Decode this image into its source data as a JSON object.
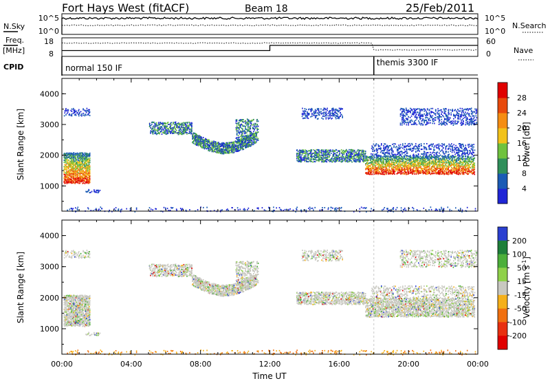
{
  "header": {
    "title": "Fort Hays West (fitACF)",
    "beam": "Beam 18",
    "date": "25/Feb/2011"
  },
  "top_panels": {
    "nsky_label": "N.Sky",
    "nsky_ticks": [
      "10^5",
      "10^0"
    ],
    "nsearch_label": "N.Search",
    "nsearch_ticks": [
      "10^5",
      "10^0"
    ],
    "freq_label": "Freq.",
    "freq_unit": "[MHz]",
    "freq_ticks": [
      "18",
      "8"
    ],
    "nave_label": "Nave",
    "nave_ticks": [
      "60",
      "0"
    ],
    "cpid_label": "CPID",
    "cpid_segments": [
      {
        "label": "normal 150 IF",
        "start_hour": 0,
        "end_hour": 18
      },
      {
        "label": "themis 3300 IF",
        "start_hour": 18,
        "end_hour": 24
      }
    ],
    "freq_series": [
      {
        "hour_start": 0,
        "hour_end": 12,
        "mhz": 10.6
      },
      {
        "hour_start": 12,
        "hour_end": 24,
        "mhz": 14.2
      }
    ]
  },
  "chart_data": [
    {
      "type": "heatmap",
      "panel": "power",
      "ylabel": "Slant Range [km]",
      "xlabel": "",
      "x_ticks": [
        "00:00",
        "04:00",
        "08:00",
        "12:00",
        "16:00",
        "20:00",
        "00:00"
      ],
      "y_ticks": [
        "1000",
        "2000",
        "3000",
        "4000"
      ],
      "xlim_hours": [
        0,
        24
      ],
      "ylim_km": [
        180,
        4500
      ],
      "colorbar_label": "Power [dB]",
      "colorbar_ticks": [
        "4",
        "8",
        "12",
        "16",
        "20",
        "24",
        "28"
      ],
      "colorbar_colors": [
        "#1f25d6",
        "#1a5bb5",
        "#2f8f5a",
        "#6fc23e",
        "#f2c21a",
        "#f58d12",
        "#e84a0c",
        "#e00000"
      ],
      "marker_hour": 18
    },
    {
      "type": "heatmap",
      "panel": "velocity",
      "ylabel": "Slant Range [km]",
      "xlabel": "Time UT",
      "x_ticks": [
        "00:00",
        "04:00",
        "08:00",
        "12:00",
        "16:00",
        "20:00",
        "00:00"
      ],
      "y_ticks": [
        "1000",
        "2000",
        "3000",
        "4000"
      ],
      "xlim_hours": [
        0,
        24
      ],
      "ylim_km": [
        180,
        4500
      ],
      "colorbar_label": "Velocity [m s^-1]",
      "colorbar_ticks": [
        "200",
        "100",
        "50",
        "15",
        "-15",
        "-50",
        "-100",
        "-200"
      ],
      "colorbar_colors": [
        "#2a3fd0",
        "#1e7f3a",
        "#4caf3a",
        "#8fd14a",
        "#c8c8c0",
        "#f5b01a",
        "#f07010",
        "#e83010",
        "#e00000"
      ],
      "marker_hour": 18
    }
  ],
  "regions": [
    {
      "h0": 0.1,
      "h1": 1.6,
      "r0": 1100,
      "r1": 2100,
      "style": "strong",
      "density": 0.8
    },
    {
      "h0": 0.1,
      "h1": 1.6,
      "r0": 3300,
      "r1": 3550,
      "style": "weak",
      "density": 0.25
    },
    {
      "h0": 1.3,
      "h1": 2.2,
      "r0": 800,
      "r1": 900,
      "style": "weak",
      "density": 0.4
    },
    {
      "h0": 5.0,
      "h1": 7.5,
      "r0": 2700,
      "r1": 3100,
      "style": "mid",
      "density": 0.45
    },
    {
      "h0": 7.5,
      "h1": 11.2,
      "r0": 2200,
      "r1": 2800,
      "style": "arc",
      "density": 0.55
    },
    {
      "h0": 10.0,
      "h1": 11.3,
      "r0": 2500,
      "r1": 3200,
      "style": "mid",
      "density": 0.35
    },
    {
      "h0": 13.5,
      "h1": 17.5,
      "r0": 1800,
      "r1": 2200,
      "style": "mid",
      "density": 0.55
    },
    {
      "h0": 13.8,
      "h1": 16.2,
      "r0": 3200,
      "r1": 3550,
      "style": "weak",
      "density": 0.3
    },
    {
      "h0": 17.5,
      "h1": 23.8,
      "r0": 1400,
      "r1": 2000,
      "style": "strong",
      "density": 0.65
    },
    {
      "h0": 17.8,
      "h1": 23.8,
      "r0": 2000,
      "r1": 2400,
      "style": "weak",
      "density": 0.25
    },
    {
      "h0": 19.5,
      "h1": 23.9,
      "r0": 3000,
      "r1": 3550,
      "style": "weak",
      "density": 0.3
    },
    {
      "h0": 0.2,
      "h1": 23.9,
      "r0": 180,
      "r1": 330,
      "style": "weak",
      "density": 0.12
    }
  ]
}
